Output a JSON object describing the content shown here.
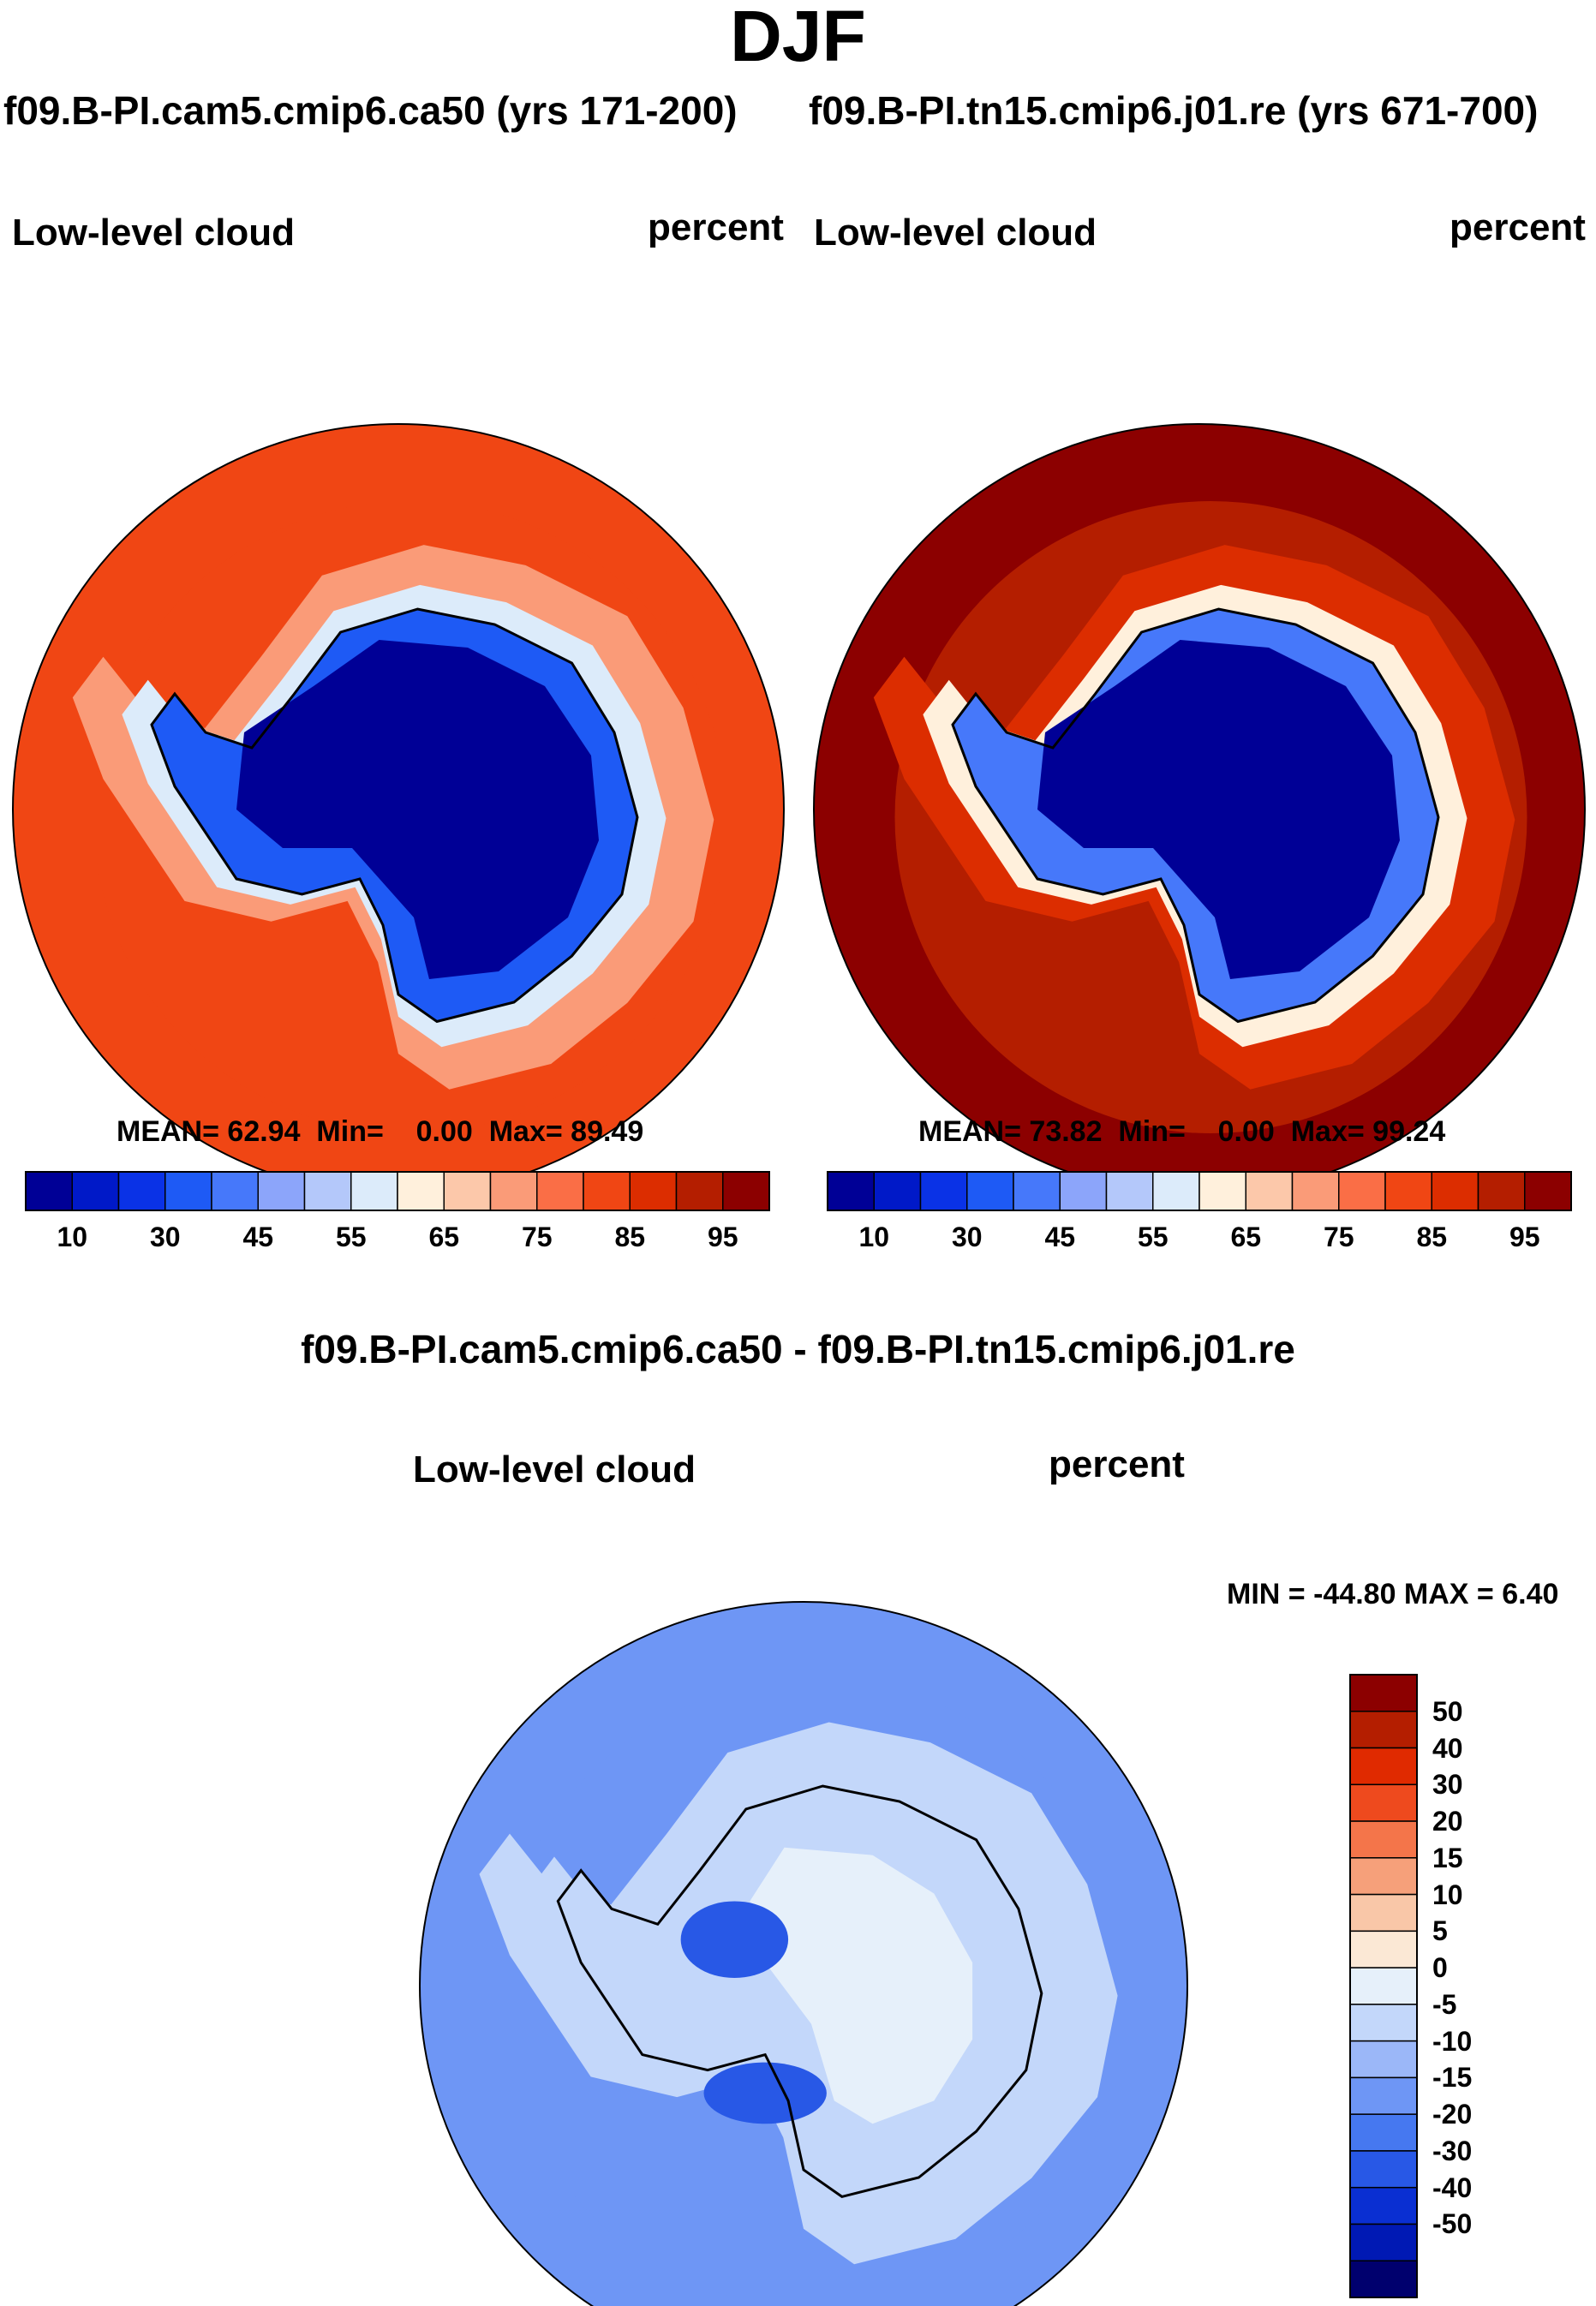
{
  "figure": {
    "title": "DJF",
    "colors": {
      "absolute_palette": [
        "#000096",
        "#0019c8",
        "#0a32e6",
        "#1e5af5",
        "#4678fa",
        "#8ca5fa",
        "#b4c8fa",
        "#dcebfa",
        "#fff0dc",
        "#fcc8aa",
        "#fa9b78",
        "#fa6e46",
        "#f04614",
        "#dc2d00",
        "#b41e00",
        "#8c0000"
      ],
      "difference_palette": [
        "#00006e",
        "#0019b4",
        "#0a2fd2",
        "#2858e6",
        "#4678f0",
        "#6e96f5",
        "#9bb7f8",
        "#c3d7fa",
        "#e6f0fa",
        "#fbe8d5",
        "#f9c7a8",
        "#f6a07a",
        "#f4754a",
        "#ee4a1e",
        "#e02a00",
        "#b41e00",
        "#8c0000"
      ],
      "land_outline": "#000000"
    }
  },
  "chart_data": [
    {
      "type": "heatmap",
      "projection": "south-polar-stereographic",
      "case": "f09.B-PI.cam5.cmip6.ca50 (yrs 171-200)",
      "variable": "Low-level cloud",
      "units": "percent",
      "stats": {
        "mean_label": "MEAN=",
        "mean": "62.94",
        "min_label": "Min=",
        "min": "0.00",
        "max_label": "Max=",
        "max": "89.49"
      },
      "colorbar": {
        "orientation": "horizontal",
        "levels": [
          10,
          20,
          30,
          40,
          45,
          50,
          55,
          60,
          65,
          70,
          75,
          80,
          85,
          90,
          95
        ],
        "tick_labels": [
          "10",
          "30",
          "45",
          "55",
          "65",
          "75",
          "85",
          "95"
        ]
      },
      "regions": {
        "ocean_far": 82,
        "ocean_ring": 80,
        "sea_ice_edge": 70,
        "antarctic_coast": 55,
        "ice_sheet_margin": 35,
        "ice_sheet_interior": 5
      }
    },
    {
      "type": "heatmap",
      "projection": "south-polar-stereographic",
      "case": "f09.B-PI.tn15.cmip6.j01.re (yrs 671-700)",
      "variable": "Low-level cloud",
      "units": "percent",
      "stats": {
        "mean_label": "MEAN=",
        "mean": "73.82",
        "min_label": "Min=",
        "min": "0.00",
        "max_label": "Max=",
        "max": "99.24"
      },
      "colorbar": {
        "orientation": "horizontal",
        "levels": [
          10,
          20,
          30,
          40,
          45,
          50,
          55,
          60,
          65,
          70,
          75,
          80,
          85,
          90,
          95
        ],
        "tick_labels": [
          "10",
          "30",
          "45",
          "55",
          "65",
          "75",
          "85",
          "95"
        ]
      },
      "regions": {
        "ocean_far": 97,
        "ocean_ring": 93,
        "sea_ice_edge": 85,
        "antarctic_coast": 60,
        "ice_sheet_margin": 40,
        "ice_sheet_interior": 5
      }
    },
    {
      "type": "heatmap",
      "projection": "south-polar-stereographic",
      "title": "f09.B-PI.cam5.cmip6.ca50 - f09.B-PI.tn15.cmip6.j01.re",
      "variable": "Low-level cloud",
      "units": "percent",
      "stats": {
        "label": "MIN = -44.80 MAX =   6.40",
        "min": -44.8,
        "max": 6.4
      },
      "colorbar": {
        "orientation": "vertical",
        "levels": [
          -50,
          -40,
          -30,
          -20,
          -15,
          -10,
          -5,
          0,
          5,
          10,
          15,
          20,
          30,
          40,
          50
        ],
        "tick_labels": [
          "50",
          "40",
          "30",
          "20",
          "15",
          "10",
          "5",
          "0",
          "-5",
          "-10",
          "-15",
          "-20",
          "-30",
          "-40",
          "-50"
        ]
      },
      "regions": {
        "ocean": -15,
        "outer_band": -12,
        "coast": -5,
        "ice_interior": 2,
        "peninsula_sector": -30,
        "ross_sector": -25
      }
    }
  ]
}
